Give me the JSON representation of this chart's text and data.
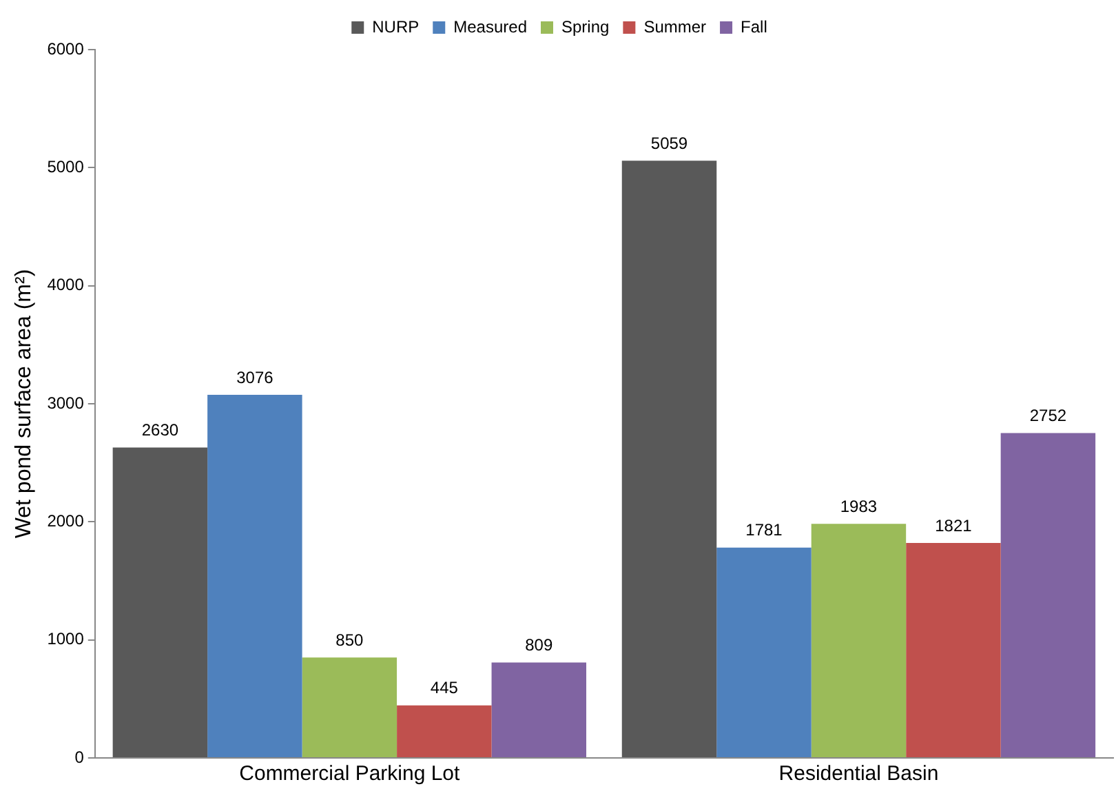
{
  "chart_data": {
    "type": "bar",
    "ylabel": "Wet pond surface area (m²)",
    "categories": [
      "Commercial Parking Lot",
      "Residential Basin"
    ],
    "series": [
      {
        "name": "NURP",
        "color": "#595959",
        "values": [
          2630,
          5059
        ]
      },
      {
        "name": "Measured",
        "color": "#4f81bd",
        "values": [
          3076,
          1781
        ]
      },
      {
        "name": "Spring",
        "color": "#9bbb59",
        "values": [
          850,
          1983
        ]
      },
      {
        "name": "Summer",
        "color": "#c0504d",
        "values": [
          445,
          1821
        ]
      },
      {
        "name": "Fall",
        "color": "#8064a2",
        "values": [
          809,
          2752
        ]
      }
    ],
    "ylim": [
      0,
      6000
    ],
    "yticks": [
      0,
      1000,
      2000,
      3000,
      4000,
      5000,
      6000
    ],
    "grid": false,
    "legend": "top",
    "data_labels": true
  }
}
